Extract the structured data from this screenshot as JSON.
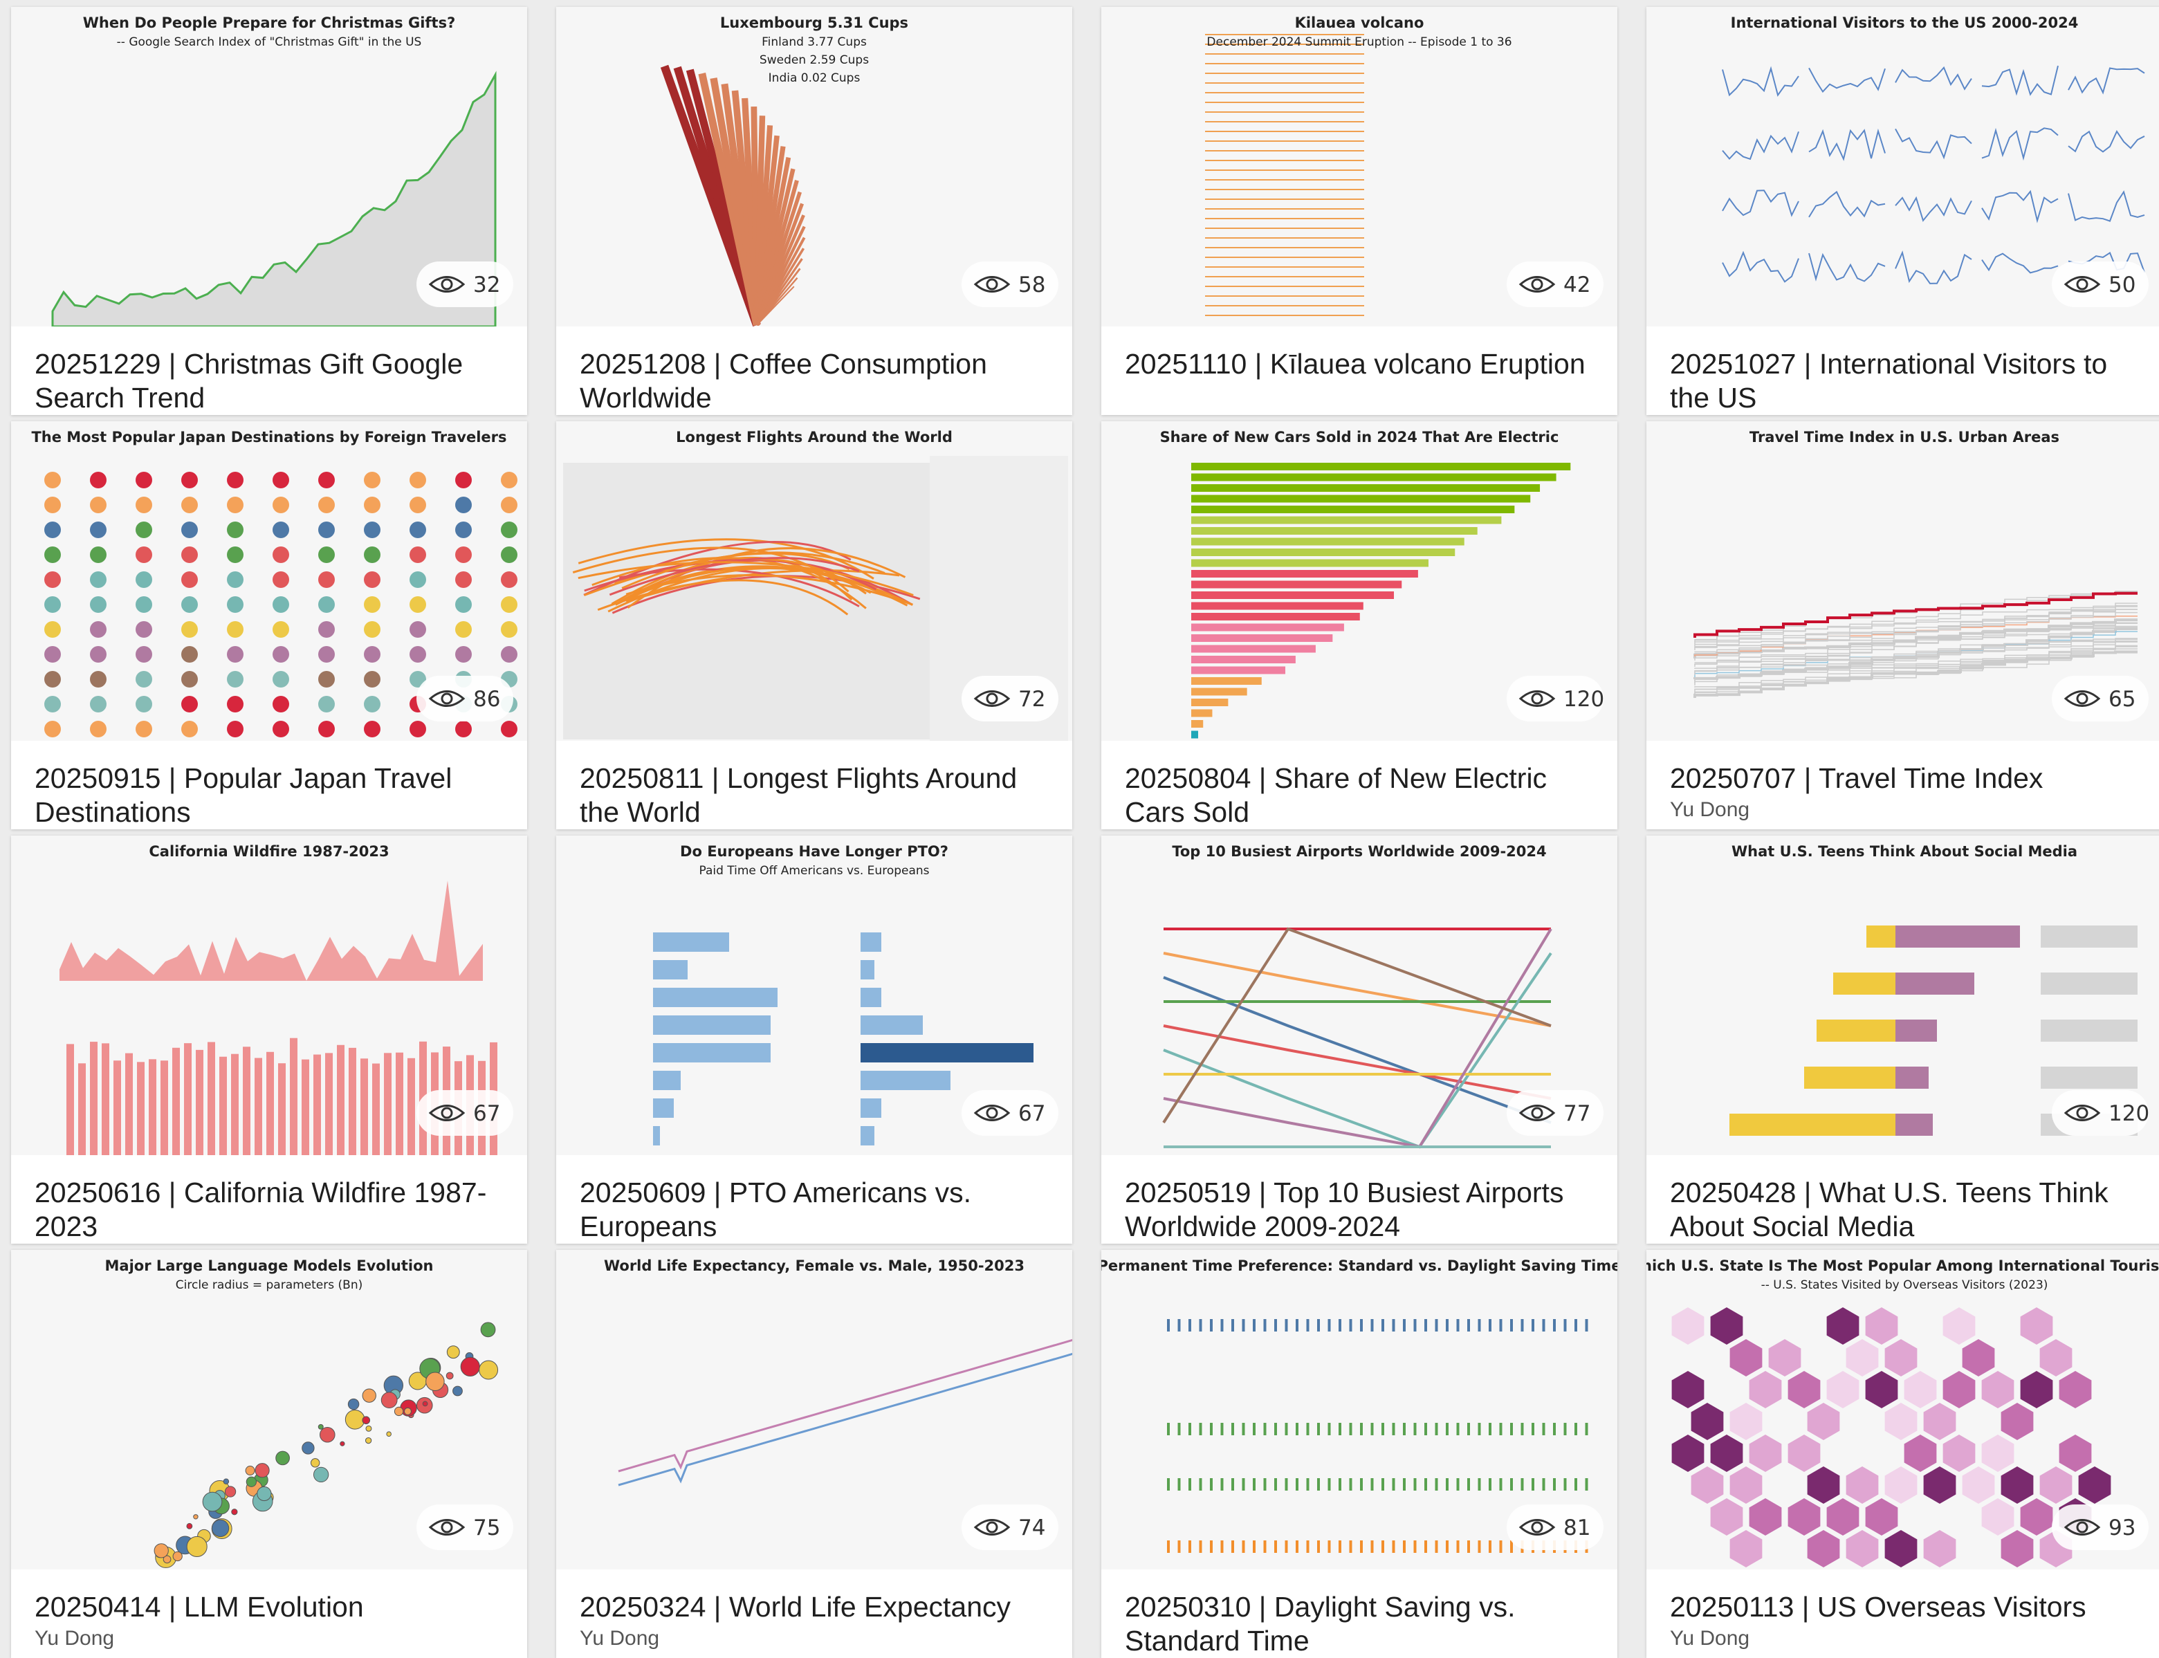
{
  "cards": [
    {
      "thumbnail": {
        "texts": [
          "When Do People Prepare for Christmas Gifts?",
          "-- Google Search Index of \"Christmas Gift\" in the US"
        ]
      },
      "views": 32,
      "title": "20251229 | Christmas Gift Google Search Trend"
    },
    {
      "thumbnail": {
        "texts": [
          "Luxembourg 5.31 Cups",
          "Finland 3.77 Cups",
          "Sweden 2.59 Cups",
          "India 0.02 Cups"
        ]
      },
      "views": 58,
      "title": "20251208 | Coffee Consumption Worldwide"
    },
    {
      "thumbnail": {
        "texts": [
          "Kilauea volcano",
          "December 2024 Summit Eruption -- Episode 1 to 36"
        ]
      },
      "views": 42,
      "title": "20251110 | Kīlauea volcano Eruption"
    },
    {
      "thumbnail": {
        "texts": [
          "International Visitors to the US 2000-2024"
        ]
      },
      "views": 50,
      "title": "20251027 | International Visitors to the US"
    },
    {
      "thumbnail": {
        "texts": [
          "The Most Popular Japan Destinations by Foreign Travelers"
        ]
      },
      "views": 86,
      "title": "20250915 | Popular Japan Travel Destinations"
    },
    {
      "thumbnail": {
        "texts": [
          "Longest Flights Around the World"
        ]
      },
      "views": 72,
      "title": "20250811 | Longest Flights Around the World"
    },
    {
      "thumbnail": {
        "texts": [
          "Share of New Cars Sold in 2024 That Are Electric"
        ]
      },
      "views": 120,
      "title": "20250804 | Share of New Electric Cars Sold"
    },
    {
      "thumbnail": {
        "texts": [
          "Travel Time Index in U.S. Urban Areas"
        ]
      },
      "views": 65,
      "title": "20250707 | Travel Time Index",
      "author": "Yu Dong"
    },
    {
      "thumbnail": {
        "texts": [
          "California Wildfire 1987-2023"
        ]
      },
      "views": 67,
      "title": "20250616 | California Wildfire 1987-2023"
    },
    {
      "thumbnail": {
        "texts": [
          "Do Europeans Have Longer PTO?",
          "Paid Time Off Americans vs. Europeans"
        ]
      },
      "views": 67,
      "title": "20250609 | PTO Americans vs. Europeans"
    },
    {
      "thumbnail": {
        "texts": [
          "Top 10 Busiest Airports Worldwide 2009-2024"
        ]
      },
      "views": 77,
      "title": "20250519 | Top 10 Busiest Airports Worldwide 2009-2024"
    },
    {
      "thumbnail": {
        "texts": [
          "What U.S. Teens Think About Social Media"
        ]
      },
      "views": 120,
      "title": "20250428 | What U.S. Teens Think About Social Media"
    },
    {
      "thumbnail": {
        "texts": [
          "Major Large Language Models Evolution",
          "Circle radius = parameters (Bn)"
        ]
      },
      "views": 75,
      "title": "20250414 | LLM Evolution",
      "author": "Yu Dong"
    },
    {
      "thumbnail": {
        "texts": [
          "World Life Expectancy, Female vs. Male, 1950-2023"
        ]
      },
      "views": 74,
      "title": "20250324 | World Life Expectancy",
      "author": "Yu Dong"
    },
    {
      "thumbnail": {
        "texts": [
          "Permanent Time Preference: Standard vs. Daylight Saving Time"
        ]
      },
      "views": 81,
      "title": "20250310 | Daylight Saving vs. Standard Time"
    },
    {
      "thumbnail": {
        "texts": [
          "Which U.S. State Is The Most Popular Among International Tourists?",
          "-- U.S. States Visited by Overseas Visitors (2023)"
        ]
      },
      "views": 93,
      "title": "20250113 | US Overseas Visitors",
      "author": "Yu Dong"
    }
  ]
}
